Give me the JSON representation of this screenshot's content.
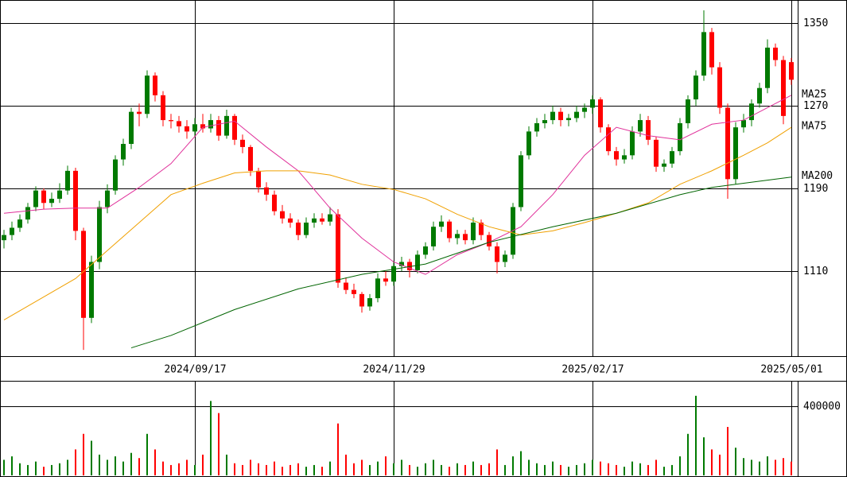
{
  "chart_data": {
    "type": "candlestick",
    "categories": [
      null,
      null,
      null,
      null,
      null,
      null,
      null,
      null,
      null,
      null,
      null,
      null,
      null,
      null,
      null,
      null,
      null,
      null,
      null,
      null,
      null,
      null,
      null,
      null,
      "2024/09/17",
      null,
      null,
      null,
      null,
      null,
      null,
      null,
      null,
      null,
      null,
      null,
      null,
      null,
      null,
      null,
      null,
      null,
      null,
      null,
      null,
      null,
      null,
      null,
      null,
      "2024/11/29",
      null,
      null,
      null,
      null,
      null,
      null,
      null,
      null,
      null,
      null,
      null,
      null,
      null,
      null,
      null,
      null,
      null,
      null,
      null,
      null,
      null,
      null,
      null,
      null,
      "2025/02/17",
      null,
      null,
      null,
      null,
      null,
      null,
      null,
      null,
      null,
      null,
      null,
      null,
      null,
      null,
      null,
      null,
      null,
      null,
      null,
      null,
      null,
      null,
      null,
      null,
      "2025/05/01"
    ],
    "ohlc": [
      [
        1140,
        1150,
        1132,
        1145
      ],
      [
        1145,
        1158,
        1140,
        1152
      ],
      [
        1152,
        1165,
        1148,
        1160
      ],
      [
        1160,
        1176,
        1156,
        1172
      ],
      [
        1172,
        1192,
        1168,
        1188
      ],
      [
        1188,
        1190,
        1170,
        1176
      ],
      [
        1176,
        1186,
        1172,
        1180
      ],
      [
        1180,
        1195,
        1176,
        1188
      ],
      [
        1188,
        1212,
        1184,
        1207
      ],
      [
        1207,
        1210,
        1140,
        1149
      ],
      [
        1149,
        1152,
        1034,
        1065
      ],
      [
        1065,
        1125,
        1060,
        1119
      ],
      [
        1119,
        1178,
        1112,
        1172
      ],
      [
        1172,
        1194,
        1166,
        1188
      ],
      [
        1188,
        1222,
        1184,
        1218
      ],
      [
        1218,
        1238,
        1212,
        1233
      ],
      [
        1233,
        1268,
        1228,
        1264
      ],
      [
        1264,
        1272,
        1250,
        1262
      ],
      [
        1262,
        1304,
        1258,
        1299
      ],
      [
        1299,
        1302,
        1274,
        1280
      ],
      [
        1280,
        1284,
        1250,
        1256
      ],
      [
        1256,
        1262,
        1248,
        1255
      ],
      [
        1255,
        1260,
        1244,
        1250
      ],
      [
        1250,
        1256,
        1238,
        1245
      ],
      [
        1245,
        1258,
        1240,
        1252
      ],
      [
        1252,
        1262,
        1244,
        1248
      ],
      [
        1248,
        1262,
        1244,
        1256
      ],
      [
        1256,
        1260,
        1236,
        1241
      ],
      [
        1241,
        1266,
        1238,
        1260
      ],
      [
        1260,
        1262,
        1232,
        1237
      ],
      [
        1237,
        1242,
        1224,
        1230
      ],
      [
        1230,
        1232,
        1202,
        1207
      ],
      [
        1207,
        1210,
        1186,
        1191
      ],
      [
        1191,
        1196,
        1178,
        1184
      ],
      [
        1184,
        1188,
        1164,
        1168
      ],
      [
        1168,
        1174,
        1156,
        1161
      ],
      [
        1161,
        1166,
        1152,
        1157
      ],
      [
        1157,
        1160,
        1140,
        1145
      ],
      [
        1145,
        1162,
        1142,
        1157
      ],
      [
        1157,
        1166,
        1152,
        1161
      ],
      [
        1161,
        1166,
        1155,
        1158
      ],
      [
        1158,
        1172,
        1154,
        1165
      ],
      [
        1165,
        1170,
        1094,
        1099
      ],
      [
        1099,
        1104,
        1088,
        1092
      ],
      [
        1092,
        1098,
        1084,
        1088
      ],
      [
        1088,
        1090,
        1070,
        1076
      ],
      [
        1076,
        1088,
        1072,
        1084
      ],
      [
        1084,
        1108,
        1080,
        1103
      ],
      [
        1103,
        1110,
        1096,
        1100
      ],
      [
        1100,
        1120,
        1096,
        1115
      ],
      [
        1115,
        1124,
        1110,
        1119
      ],
      [
        1119,
        1122,
        1104,
        1111
      ],
      [
        1111,
        1130,
        1108,
        1126
      ],
      [
        1126,
        1138,
        1122,
        1134
      ],
      [
        1134,
        1158,
        1130,
        1153
      ],
      [
        1153,
        1164,
        1148,
        1158
      ],
      [
        1158,
        1160,
        1138,
        1142
      ],
      [
        1142,
        1150,
        1136,
        1146
      ],
      [
        1146,
        1150,
        1136,
        1140
      ],
      [
        1140,
        1162,
        1136,
        1157
      ],
      [
        1157,
        1160,
        1140,
        1145
      ],
      [
        1145,
        1148,
        1130,
        1134
      ],
      [
        1134,
        1138,
        1108,
        1119
      ],
      [
        1119,
        1130,
        1114,
        1126
      ],
      [
        1126,
        1176,
        1122,
        1172
      ],
      [
        1172,
        1226,
        1168,
        1222
      ],
      [
        1222,
        1250,
        1218,
        1245
      ],
      [
        1245,
        1258,
        1240,
        1253
      ],
      [
        1253,
        1262,
        1248,
        1256
      ],
      [
        1256,
        1270,
        1252,
        1264
      ],
      [
        1264,
        1268,
        1250,
        1256
      ],
      [
        1256,
        1262,
        1250,
        1258
      ],
      [
        1258,
        1270,
        1254,
        1264
      ],
      [
        1264,
        1272,
        1258,
        1268
      ],
      [
        1268,
        1280,
        1262,
        1276
      ],
      [
        1276,
        1278,
        1244,
        1249
      ],
      [
        1249,
        1252,
        1222,
        1226
      ],
      [
        1226,
        1230,
        1212,
        1218
      ],
      [
        1218,
        1228,
        1214,
        1222
      ],
      [
        1222,
        1250,
        1218,
        1245
      ],
      [
        1245,
        1262,
        1240,
        1256
      ],
      [
        1256,
        1260,
        1232,
        1237
      ],
      [
        1237,
        1240,
        1206,
        1211
      ],
      [
        1211,
        1218,
        1206,
        1214
      ],
      [
        1214,
        1230,
        1210,
        1226
      ],
      [
        1226,
        1258,
        1222,
        1253
      ],
      [
        1253,
        1280,
        1248,
        1276
      ],
      [
        1276,
        1304,
        1270,
        1299
      ],
      [
        1299,
        1362,
        1294,
        1341
      ],
      [
        1341,
        1345,
        1300,
        1307
      ],
      [
        1307,
        1312,
        1262,
        1268
      ],
      [
        1268,
        1272,
        1180,
        1199
      ],
      [
        1199,
        1254,
        1194,
        1249
      ],
      [
        1249,
        1262,
        1244,
        1256
      ],
      [
        1256,
        1276,
        1250,
        1272
      ],
      [
        1272,
        1292,
        1268,
        1287
      ],
      [
        1287,
        1334,
        1282,
        1326
      ],
      [
        1326,
        1330,
        1308,
        1314
      ],
      [
        1314,
        1318,
        1252,
        1260
      ],
      [
        1312,
        1316,
        1290,
        1295
      ]
    ],
    "up_color": "#007a00",
    "down_color": "#ff0000",
    "ylim": [
      1028,
      1372
    ],
    "yticks": [
      1110,
      1190,
      1270,
      1350
    ],
    "grid": true,
    "moving_averages": [
      {
        "name": "MA25",
        "color": "#e0309a",
        "x": [
          0,
          5,
          9,
          13,
          17,
          21,
          25,
          29,
          33,
          37,
          41,
          45,
          49,
          53,
          57,
          61,
          65,
          69,
          73,
          77,
          81,
          85,
          89,
          93,
          96,
          99
        ],
        "values": [
          1166,
          1170,
          1171,
          1171,
          1191,
          1214,
          1249,
          1255,
          1230,
          1207,
          1171,
          1142,
          1119,
          1107,
          1126,
          1138,
          1153,
          1184,
          1222,
          1249,
          1241,
          1237,
          1252,
          1256,
          1268,
          1280
        ]
      },
      {
        "name": "MA75",
        "color": "#f0a000",
        "x": [
          0,
          9,
          13,
          17,
          21,
          25,
          29,
          33,
          37,
          41,
          45,
          49,
          53,
          57,
          61,
          65,
          69,
          73,
          77,
          81,
          85,
          89,
          93,
          96,
          99
        ],
        "values": [
          1063,
          1103,
          1130,
          1157,
          1184,
          1195,
          1205,
          1207,
          1207,
          1203,
          1194,
          1189,
          1180,
          1165,
          1153,
          1145,
          1149,
          1157,
          1166,
          1176,
          1194,
          1207,
          1222,
          1234,
          1249
        ]
      },
      {
        "name": "MA200",
        "color": "#006400",
        "x": [
          16,
          21,
          29,
          37,
          45,
          53,
          61,
          69,
          77,
          85,
          89,
          93,
          99
        ],
        "values": [
          1036,
          1048,
          1073,
          1093,
          1107,
          1117,
          1138,
          1153,
          1166,
          1184,
          1191,
          1195,
          1201
        ]
      }
    ],
    "volume": {
      "values": [
        90000,
        110000,
        70000,
        60000,
        80000,
        50000,
        60000,
        70000,
        90000,
        150000,
        240000,
        200000,
        120000,
        90000,
        110000,
        80000,
        130000,
        100000,
        240000,
        150000,
        80000,
        60000,
        70000,
        90000,
        60000,
        120000,
        430000,
        360000,
        120000,
        70000,
        60000,
        90000,
        70000,
        60000,
        80000,
        50000,
        60000,
        70000,
        50000,
        60000,
        50000,
        80000,
        300000,
        120000,
        70000,
        90000,
        60000,
        80000,
        110000,
        70000,
        90000,
        60000,
        50000,
        70000,
        90000,
        60000,
        50000,
        70000,
        60000,
        80000,
        60000,
        70000,
        150000,
        60000,
        110000,
        140000,
        90000,
        70000,
        60000,
        80000,
        60000,
        50000,
        60000,
        70000,
        90000,
        80000,
        70000,
        60000,
        50000,
        80000,
        70000,
        60000,
        90000,
        50000,
        60000,
        110000,
        240000,
        460000,
        220000,
        150000,
        120000,
        280000,
        160000,
        100000,
        90000,
        80000,
        110000,
        90000,
        100000,
        80000
      ],
      "ylim": [
        0,
        542000
      ],
      "yticks": [
        400000
      ]
    }
  }
}
